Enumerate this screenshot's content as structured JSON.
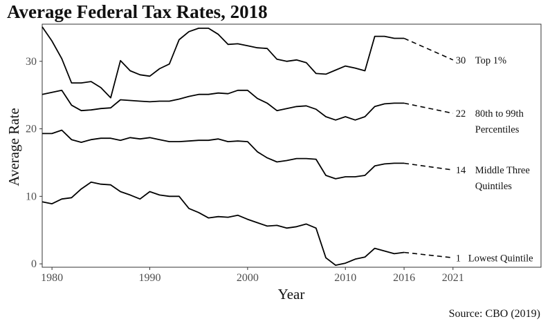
{
  "title": "Average Federal Tax Rates, 2018",
  "source": "Source: CBO (2019)",
  "chart_data": {
    "type": "line",
    "xlabel": "Year",
    "ylabel": "Average Rate",
    "xlim": [
      1979,
      2030
    ],
    "ylim": [
      -0.5,
      35.5
    ],
    "x_ticks": [
      1980,
      1990,
      2000,
      2010,
      2016,
      2021
    ],
    "y_ticks": [
      0,
      10,
      20,
      30
    ],
    "grid": false,
    "legend": "none",
    "series": [
      {
        "key": "top1",
        "label_lines": [
          "Top 1%"
        ],
        "projection_value": "30",
        "x": [
          1979,
          1980,
          1981,
          1982,
          1983,
          1984,
          1985,
          1986,
          1987,
          1988,
          1989,
          1990,
          1991,
          1992,
          1993,
          1994,
          1995,
          1996,
          1997,
          1998,
          1999,
          2000,
          2001,
          2002,
          2003,
          2004,
          2005,
          2006,
          2007,
          2008,
          2009,
          2010,
          2011,
          2012,
          2013,
          2014,
          2015,
          2016
        ],
        "y": [
          35.1,
          33.0,
          30.4,
          26.8,
          26.8,
          27.0,
          26.1,
          24.6,
          30.1,
          28.6,
          28.0,
          27.8,
          28.9,
          29.6,
          33.2,
          34.4,
          34.9,
          34.9,
          34.0,
          32.5,
          32.6,
          32.3,
          32.0,
          31.9,
          30.3,
          30.0,
          30.2,
          29.8,
          28.2,
          28.1,
          28.7,
          29.3,
          29.0,
          28.6,
          33.7,
          33.7,
          33.4,
          33.4
        ],
        "projection": {
          "x": [
            2016,
            2021
          ],
          "y": [
            33.4,
            30.2
          ]
        }
      },
      {
        "key": "p80_99",
        "label_lines": [
          "80th to 99th",
          "Percentiles"
        ],
        "projection_value": "22",
        "x": [
          1979,
          1980,
          1981,
          1982,
          1983,
          1984,
          1985,
          1986,
          1987,
          1988,
          1989,
          1990,
          1991,
          1992,
          1993,
          1994,
          1995,
          1996,
          1997,
          1998,
          1999,
          2000,
          2001,
          2002,
          2003,
          2004,
          2005,
          2006,
          2007,
          2008,
          2009,
          2010,
          2011,
          2012,
          2013,
          2014,
          2015,
          2016
        ],
        "y": [
          25.1,
          25.4,
          25.7,
          23.5,
          22.7,
          22.8,
          23.0,
          23.1,
          24.3,
          24.2,
          24.1,
          24.0,
          24.1,
          24.1,
          24.4,
          24.8,
          25.1,
          25.1,
          25.3,
          25.2,
          25.7,
          25.7,
          24.5,
          23.8,
          22.7,
          23.0,
          23.3,
          23.4,
          22.9,
          21.8,
          21.3,
          21.8,
          21.3,
          21.8,
          23.3,
          23.7,
          23.8,
          23.8
        ],
        "projection": {
          "x": [
            2016,
            2021
          ],
          "y": [
            23.8,
            22.3
          ]
        }
      },
      {
        "key": "middle3",
        "label_lines": [
          "Middle Three",
          "Quintiles"
        ],
        "projection_value": "14",
        "x": [
          1979,
          1980,
          1981,
          1982,
          1983,
          1984,
          1985,
          1986,
          1987,
          1988,
          1989,
          1990,
          1991,
          1992,
          1993,
          1994,
          1995,
          1996,
          1997,
          1998,
          1999,
          2000,
          2001,
          2002,
          2003,
          2004,
          2005,
          2006,
          2007,
          2008,
          2009,
          2010,
          2011,
          2012,
          2013,
          2014,
          2015,
          2016
        ],
        "y": [
          19.3,
          19.3,
          19.8,
          18.4,
          18.0,
          18.4,
          18.6,
          18.6,
          18.3,
          18.7,
          18.5,
          18.7,
          18.4,
          18.1,
          18.1,
          18.2,
          18.3,
          18.3,
          18.5,
          18.1,
          18.2,
          18.1,
          16.6,
          15.7,
          15.1,
          15.3,
          15.6,
          15.6,
          15.5,
          13.1,
          12.6,
          12.9,
          12.9,
          13.1,
          14.5,
          14.8,
          14.9,
          14.9
        ],
        "projection": {
          "x": [
            2016,
            2021
          ],
          "y": [
            14.9,
            13.9
          ]
        }
      },
      {
        "key": "lowest",
        "label_lines": [
          "Lowest Quintile"
        ],
        "projection_value": "1",
        "x": [
          1979,
          1980,
          1981,
          1982,
          1983,
          1984,
          1985,
          1986,
          1987,
          1988,
          1989,
          1990,
          1991,
          1992,
          1993,
          1994,
          1995,
          1996,
          1997,
          1998,
          1999,
          2000,
          2001,
          2002,
          2003,
          2004,
          2005,
          2006,
          2007,
          2008,
          2009,
          2010,
          2011,
          2012,
          2013,
          2014,
          2015,
          2016
        ],
        "y": [
          9.2,
          8.9,
          9.6,
          9.8,
          11.1,
          12.1,
          11.8,
          11.7,
          10.7,
          10.2,
          9.6,
          10.7,
          10.2,
          10.0,
          10.0,
          8.2,
          7.6,
          6.8,
          7.0,
          6.9,
          7.2,
          6.6,
          6.1,
          5.6,
          5.7,
          5.3,
          5.5,
          5.9,
          5.3,
          0.9,
          -0.2,
          0.1,
          0.7,
          1.0,
          2.3,
          1.9,
          1.5,
          1.7
        ],
        "projection": {
          "x": [
            2016,
            2021
          ],
          "y": [
            1.7,
            0.9
          ]
        }
      }
    ]
  }
}
